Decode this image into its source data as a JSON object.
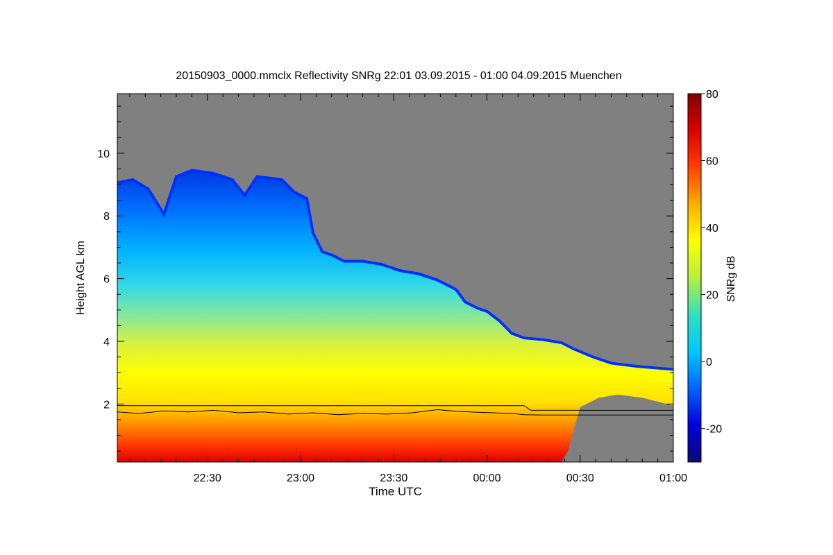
{
  "chart_data": {
    "type": "heatmap",
    "title": "20150903_0000.mmclx Reflectivity SNRg   22:01 03.09.2015 - 01:00 04.09.2015 Muenchen",
    "xlabel": "Time UTC",
    "ylabel": "Height AGL km",
    "x_range_minutes": [
      -119,
      60
    ],
    "x_ticks": [
      {
        "minutes": -90,
        "label": "22:30"
      },
      {
        "minutes": -60,
        "label": "23:00"
      },
      {
        "minutes": -30,
        "label": "23:30"
      },
      {
        "minutes": 0,
        "label": "00:00"
      },
      {
        "minutes": 30,
        "label": "00:30"
      },
      {
        "minutes": 60,
        "label": "01:00"
      }
    ],
    "y_range_km": [
      0.15,
      11.9
    ],
    "y_ticks": [
      {
        "value": 2,
        "label": "2"
      },
      {
        "value": 4,
        "label": "4"
      },
      {
        "value": 6,
        "label": "6"
      },
      {
        "value": 8,
        "label": "8"
      },
      {
        "value": 10,
        "label": "10"
      }
    ],
    "colorbar": {
      "label": "SNRg dB",
      "range": [
        -30,
        80
      ],
      "ticks": [
        {
          "value": -20,
          "label": "-20"
        },
        {
          "value": 0,
          "label": "0"
        },
        {
          "value": 20,
          "label": "20"
        },
        {
          "value": 40,
          "label": "40"
        },
        {
          "value": 60,
          "label": "60"
        },
        {
          "value": 80,
          "label": "80"
        }
      ]
    },
    "cloud_top_km": [
      [
        -119,
        9.1
      ],
      [
        -114,
        9.2
      ],
      [
        -109,
        8.9
      ],
      [
        -104,
        8.1
      ],
      [
        -100,
        9.3
      ],
      [
        -95,
        9.5
      ],
      [
        -88,
        9.4
      ],
      [
        -82,
        9.2
      ],
      [
        -78,
        8.7
      ],
      [
        -74,
        9.3
      ],
      [
        -66,
        9.2
      ],
      [
        -62,
        8.8
      ],
      [
        -58,
        8.6
      ],
      [
        -56,
        7.5
      ],
      [
        -53,
        6.9
      ],
      [
        -50,
        6.8
      ],
      [
        -46,
        6.6
      ],
      [
        -40,
        6.6
      ],
      [
        -34,
        6.5
      ],
      [
        -28,
        6.3
      ],
      [
        -22,
        6.2
      ],
      [
        -16,
        6.0
      ],
      [
        -10,
        5.7
      ],
      [
        -7,
        5.3
      ],
      [
        -3,
        5.1
      ],
      [
        0,
        5.0
      ],
      [
        4,
        4.7
      ],
      [
        8,
        4.3
      ],
      [
        12,
        4.15
      ],
      [
        18,
        4.1
      ],
      [
        24,
        4.0
      ],
      [
        28,
        3.8
      ],
      [
        34,
        3.55
      ],
      [
        40,
        3.35
      ],
      [
        48,
        3.25
      ],
      [
        54,
        3.2
      ],
      [
        60,
        3.15
      ]
    ],
    "cloud_base_km": [
      [
        -119,
        0.15
      ],
      [
        24,
        0.15
      ],
      [
        26,
        0.5
      ],
      [
        28,
        1.2
      ],
      [
        30,
        1.9
      ],
      [
        36,
        2.2
      ],
      [
        42,
        2.3
      ],
      [
        50,
        2.2
      ],
      [
        56,
        2.05
      ],
      [
        60,
        1.95
      ]
    ],
    "boundary_lines_km": {
      "upper": [
        [
          -119,
          1.95
        ],
        [
          12,
          1.95
        ],
        [
          14,
          1.8
        ],
        [
          60,
          1.8
        ]
      ],
      "lower": [
        [
          -119,
          1.75
        ],
        [
          -112,
          1.7
        ],
        [
          -104,
          1.78
        ],
        [
          -96,
          1.75
        ],
        [
          -88,
          1.8
        ],
        [
          -80,
          1.72
        ],
        [
          -72,
          1.75
        ],
        [
          -64,
          1.68
        ],
        [
          -56,
          1.72
        ],
        [
          -48,
          1.66
        ],
        [
          -40,
          1.7
        ],
        [
          -32,
          1.68
        ],
        [
          -24,
          1.72
        ],
        [
          -16,
          1.82
        ],
        [
          -10,
          1.77
        ],
        [
          -4,
          1.74
        ],
        [
          2,
          1.72
        ],
        [
          8,
          1.7
        ],
        [
          12,
          1.66
        ],
        [
          18,
          1.65
        ],
        [
          30,
          1.65
        ],
        [
          60,
          1.65
        ]
      ]
    },
    "colors": {
      "no_signal_background": "#808080",
      "colormap": [
        "#0a0a78",
        "#0000dc",
        "#0064ff",
        "#00c8ff",
        "#30e0c0",
        "#b4f040",
        "#ffff00",
        "#ffb000",
        "#ff4000",
        "#dc0000",
        "#820000"
      ]
    }
  }
}
